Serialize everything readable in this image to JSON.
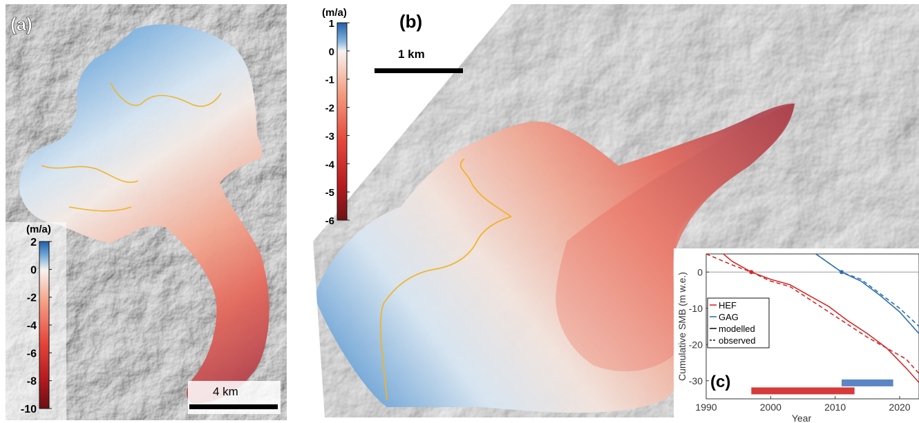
{
  "panel_a": {
    "label": "(a)",
    "colorbar": {
      "unit": "(m/a)",
      "ticks": [
        "2",
        "0",
        "-2",
        "-4",
        "-6",
        "-8",
        "-10"
      ],
      "tick_values": [
        2,
        0,
        -2,
        -4,
        -6,
        -8,
        -10
      ],
      "range": [
        -10,
        2
      ]
    },
    "scalebar_label": "4 km"
  },
  "panel_b": {
    "label": "(b)",
    "colorbar": {
      "unit": "(m/a)",
      "ticks": [
        "1",
        "0",
        "-1",
        "-2",
        "-3",
        "-4",
        "-5",
        "-6"
      ],
      "tick_values": [
        1,
        0,
        -1,
        -2,
        -3,
        -4,
        -5,
        -6
      ],
      "range": [
        -6,
        1
      ]
    },
    "scalebar_label": "1 km"
  },
  "panel_c": {
    "label": "(c)",
    "legend": [
      "HEF",
      "GAG",
      "modelled",
      "observed"
    ]
  },
  "colors": {
    "hef": "#d62728",
    "gag": "#2c6fb3",
    "outline": "#f0b429",
    "hef_bar": "#d73a3a",
    "gag_bar": "#5b86c5"
  },
  "chart_data": {
    "type": "line",
    "title": "",
    "xlabel": "Year",
    "ylabel": "Cumulative SMB (m w.e.)",
    "xlim": [
      1990,
      2023
    ],
    "ylim": [
      -35,
      5
    ],
    "xticks": [
      1990,
      2000,
      2010,
      2020
    ],
    "yticks": [
      0,
      -10,
      -20,
      -30
    ],
    "grid": false,
    "legend_position": "left",
    "series": [
      {
        "name": "HEF modelled",
        "color": "#d62728",
        "style": "solid",
        "x": [
          1990,
          1994,
          1997,
          2000,
          2003,
          2006,
          2009,
          2012,
          2015,
          2018,
          2021,
          2023
        ],
        "y": [
          9,
          3,
          0,
          -2,
          -3.5,
          -6.5,
          -9.5,
          -13.5,
          -17,
          -21,
          -26.5,
          -30.5
        ]
      },
      {
        "name": "HEF observed",
        "color": "#d62728",
        "style": "dashed",
        "x": [
          1990,
          1994,
          1997,
          2000,
          2003,
          2006,
          2009,
          2012,
          2015,
          2018,
          2021,
          2023
        ],
        "y": [
          5,
          2,
          0,
          -2.5,
          -4,
          -7.5,
          -11,
          -14.5,
          -18,
          -21,
          -24,
          -28
        ]
      },
      {
        "name": "GAG modelled",
        "color": "#2c6fb3",
        "style": "solid",
        "x": [
          2007,
          2009,
          2011,
          2014,
          2017,
          2020,
          2023
        ],
        "y": [
          5,
          2.5,
          0,
          -2.5,
          -6.5,
          -11,
          -17
        ]
      },
      {
        "name": "GAG observed",
        "color": "#2c6fb3",
        "style": "dashed",
        "x": [
          2007,
          2009,
          2011,
          2014,
          2017,
          2020,
          2023
        ],
        "y": [
          5,
          2.5,
          0,
          -2,
          -6,
          -10,
          -15
        ]
      }
    ],
    "reference_points": [
      {
        "series": "HEF",
        "x": 1997,
        "y": 0
      },
      {
        "series": "GAG",
        "x": 2011,
        "y": 0
      }
    ],
    "period_bars": [
      {
        "series": "HEF",
        "start": 1997,
        "end": 2013
      },
      {
        "series": "GAG",
        "start": 2011,
        "end": 2019
      }
    ]
  }
}
